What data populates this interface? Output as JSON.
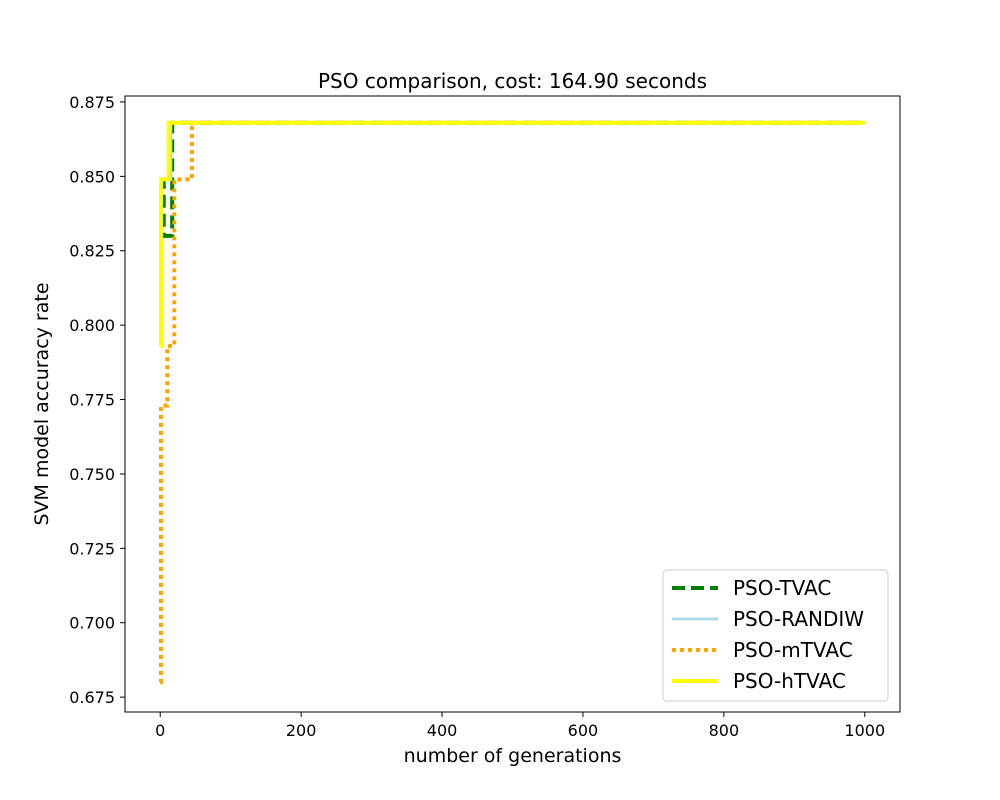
{
  "chart_data": {
    "type": "line",
    "title": "PSO comparison, cost: 164.90 seconds",
    "xlabel": "number of generations",
    "ylabel": "SVM model accuracy rate",
    "xlim": [
      -50,
      1050
    ],
    "ylim": [
      0.67,
      0.877
    ],
    "xticks": [
      0,
      200,
      400,
      600,
      800,
      1000
    ],
    "yticks": [
      0.675,
      0.7,
      0.725,
      0.75,
      0.775,
      0.8,
      0.825,
      0.85,
      0.875
    ],
    "xtick_labels": [
      "0",
      "200",
      "400",
      "600",
      "800",
      "1000"
    ],
    "ytick_labels": [
      "0.675",
      "0.700",
      "0.725",
      "0.750",
      "0.775",
      "0.800",
      "0.825",
      "0.850",
      "0.875"
    ],
    "grid": false,
    "legend_position": "lower-right",
    "series": [
      {
        "name": "PSO-TVAC",
        "color": "#008000",
        "style": "dashed",
        "points": [
          [
            0,
            0.849
          ],
          [
            5,
            0.849
          ],
          [
            5,
            0.83
          ],
          [
            17,
            0.83
          ],
          [
            17,
            0.868
          ],
          [
            1000,
            0.868
          ]
        ]
      },
      {
        "name": "PSO-RANDIW",
        "color": "#add8e6",
        "style": "solid",
        "points": [
          [
            0,
            0.849
          ],
          [
            15,
            0.849
          ],
          [
            15,
            0.868
          ],
          [
            1000,
            0.868
          ]
        ]
      },
      {
        "name": "PSO-mTVAC",
        "color": "#ffa500",
        "style": "dotted",
        "points": [
          [
            0,
            0.68
          ],
          [
            1,
            0.68
          ],
          [
            1,
            0.773
          ],
          [
            10,
            0.773
          ],
          [
            10,
            0.793
          ],
          [
            20,
            0.793
          ],
          [
            20,
            0.849
          ],
          [
            45,
            0.849
          ],
          [
            45,
            0.868
          ],
          [
            1000,
            0.868
          ]
        ]
      },
      {
        "name": "PSO-hTVAC",
        "color": "#ffff00",
        "style": "solid-thick",
        "points": [
          [
            0,
            0.793
          ],
          [
            1,
            0.793
          ],
          [
            1,
            0.849
          ],
          [
            12,
            0.849
          ],
          [
            12,
            0.868
          ],
          [
            1000,
            0.868
          ]
        ]
      }
    ]
  }
}
